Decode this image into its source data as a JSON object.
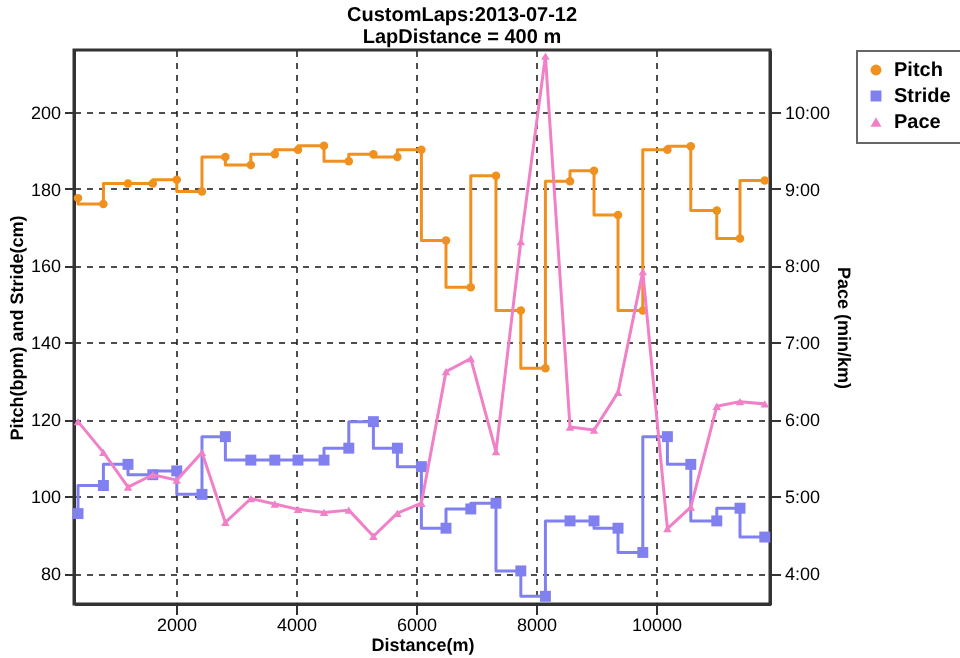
{
  "chart_data": {
    "type": "line",
    "title": "CustomLaps:2013-07-12",
    "subtitle": "LapDistance = 400 m",
    "xlabel": "Distance(m)",
    "ylabel": "Pitch(bpm) and Stride(cm)",
    "y2label": "Pace (min/km)",
    "x": [
      367,
      790,
      1200,
      1613,
      2013,
      2433,
      2823,
      3247,
      3647,
      4033,
      4467,
      4880,
      5290,
      5690,
      6090,
      6500,
      6913,
      7333,
      7747,
      8157,
      8567,
      8967,
      9367,
      9780,
      10190,
      10580,
      11013,
      11400,
      11813
    ],
    "series": [
      {
        "name": "Pitch",
        "type": "step",
        "marker": "circle",
        "color": "#f0901e",
        "values": [
          177.5,
          176,
          181.3,
          181.3,
          182.3,
          179.2,
          188.2,
          186.1,
          188.9,
          190.1,
          191.1,
          187.1,
          188.9,
          188.2,
          190.1,
          166.5,
          154.3,
          183.3,
          148.3,
          133.3,
          181.9,
          184.6,
          173.1,
          148.3,
          190.1,
          191,
          174.3,
          167,
          182.1
        ]
      },
      {
        "name": "Stride",
        "type": "step",
        "marker": "square",
        "color": "#8080f0",
        "values": [
          95.5,
          102.8,
          108.3,
          105.6,
          106.6,
          100.5,
          115.5,
          109.4,
          109.4,
          109.4,
          109.4,
          112.5,
          119.4,
          112.5,
          107.7,
          91.7,
          96.7,
          98.2,
          80.6,
          74,
          93.6,
          93.6,
          91.7,
          85.4,
          115.5,
          108.3,
          93.6,
          96.9,
          89.4
        ]
      },
      {
        "name": "Pace",
        "type": "line",
        "marker": "triangle",
        "axis": "y2",
        "color": "#f080c8",
        "values": [
          5.97,
          5.57,
          5.12,
          5.28,
          5.21,
          5.57,
          4.66,
          4.97,
          4.9,
          4.83,
          4.79,
          4.82,
          4.48,
          4.78,
          4.91,
          6.62,
          6.79,
          5.58,
          8.31,
          10.72,
          5.9,
          5.86,
          6.35,
          7.92,
          4.58,
          4.86,
          6.17,
          6.23,
          6.2
        ]
      }
    ],
    "xlim": [
      300,
      11900
    ],
    "xticks": [
      2000,
      4000,
      6000,
      8000,
      10000
    ],
    "ylim": [
      72,
      216
    ],
    "yticks": [
      80,
      100,
      120,
      140,
      160,
      180,
      200
    ],
    "y2lim": [
      3.6,
      10.8
    ],
    "y2ticks": [
      {
        "value": 4,
        "label": "4:00"
      },
      {
        "value": 5,
        "label": "5:00"
      },
      {
        "value": 6,
        "label": "6:00"
      },
      {
        "value": 7,
        "label": "7:00"
      },
      {
        "value": 8,
        "label": "8:00"
      },
      {
        "value": 9,
        "label": "9:00"
      },
      {
        "value": 10,
        "label": "10:00"
      }
    ],
    "grid": true,
    "legend": "top right"
  }
}
